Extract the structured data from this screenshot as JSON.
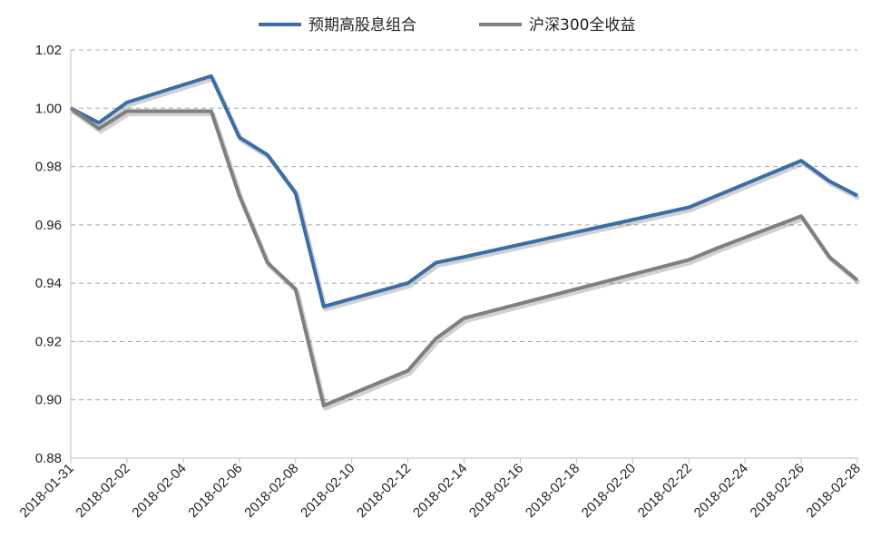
{
  "chart_data": {
    "type": "line",
    "title": "",
    "xlabel": "",
    "ylabel": "",
    "x": [
      "2018-01-31",
      "2018-02-01",
      "2018-02-02",
      "2018-02-05",
      "2018-02-06",
      "2018-02-07",
      "2018-02-08",
      "2018-02-09",
      "2018-02-12",
      "2018-02-13",
      "2018-02-14",
      "2018-02-22",
      "2018-02-23",
      "2018-02-26",
      "2018-02-27",
      "2018-02-28"
    ],
    "x_ticks": [
      "2018-01-31",
      "2018-02-02",
      "2018-02-04",
      "2018-02-06",
      "2018-02-08",
      "2018-02-10",
      "2018-02-12",
      "2018-02-14",
      "2018-02-16",
      "2018-02-18",
      "2018-02-20",
      "2018-02-22",
      "2018-02-24",
      "2018-02-26",
      "2018-02-28"
    ],
    "y_ticks": [
      "0.88",
      "0.90",
      "0.92",
      "0.94",
      "0.96",
      "0.98",
      "1.00",
      "1.02"
    ],
    "ylim": [
      0.88,
      1.02
    ],
    "grid": "horizontal dashed",
    "legend_position": "top-center",
    "series": [
      {
        "name": "预期高股息组合",
        "color": "#3a6ea5",
        "values": [
          1.0,
          0.995,
          1.002,
          1.011,
          0.99,
          0.984,
          0.971,
          0.932,
          0.94,
          0.947,
          0.949,
          0.966,
          0.97,
          0.982,
          0.975,
          0.97
        ]
      },
      {
        "name": "沪深300全收益",
        "color": "#7f7f7f",
        "values": [
          1.0,
          0.993,
          0.999,
          0.999,
          0.97,
          0.947,
          0.938,
          0.898,
          0.91,
          0.921,
          0.928,
          0.948,
          0.952,
          0.963,
          0.949,
          0.941
        ]
      }
    ]
  }
}
